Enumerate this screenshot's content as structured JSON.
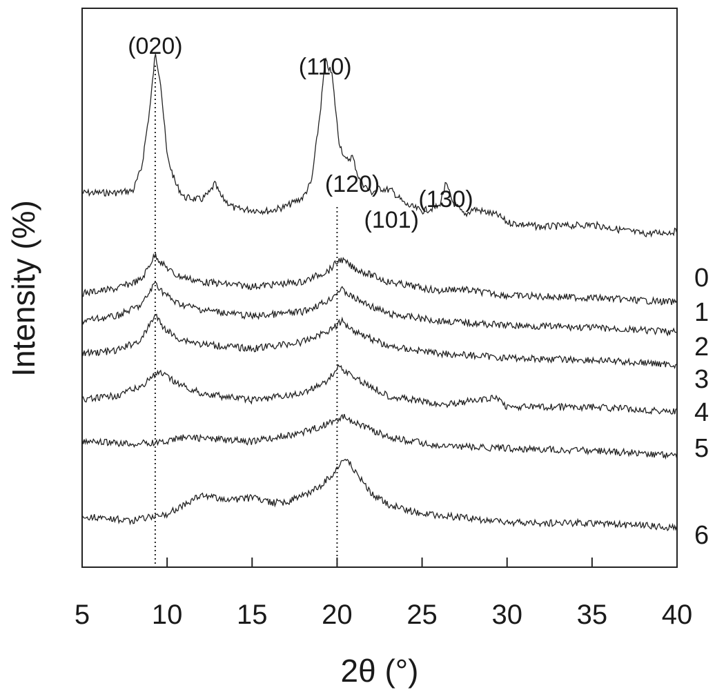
{
  "chart_data": {
    "type": "line",
    "xlabel": "2θ (°)",
    "ylabel": "Intensity (%)",
    "xlim": [
      5,
      40
    ],
    "xticks": [
      5,
      10,
      15,
      20,
      25,
      30,
      35,
      40
    ],
    "grid": false,
    "legend": "none",
    "ref_lines": [
      9.3,
      20.0
    ],
    "peak_labels": [
      {
        "text": "(020)",
        "x": 9.3
      },
      {
        "text": "(110)",
        "x": 19.3
      },
      {
        "text": "(120)",
        "x": 20.9
      },
      {
        "text": "(101)",
        "x": 23.2
      },
      {
        "text": "(130)",
        "x": 26.4
      }
    ],
    "series": [
      {
        "name": "0",
        "x": [
          5,
          7,
          8,
          8.5,
          9,
          9.3,
          9.6,
          10,
          10.5,
          11,
          12,
          12.5,
          12.8,
          13.2,
          14,
          16,
          17,
          18,
          18.5,
          19,
          19.3,
          19.7,
          20.1,
          20.5,
          20.9,
          21.3,
          22,
          22.5,
          23.2,
          24,
          25,
          26,
          26.4,
          26.8,
          27.5,
          28,
          29.5,
          30,
          32,
          35,
          38,
          40
        ],
        "y": [
          0.22,
          0.22,
          0.23,
          0.33,
          0.6,
          0.83,
          0.72,
          0.38,
          0.26,
          0.2,
          0.19,
          0.22,
          0.26,
          0.2,
          0.15,
          0.14,
          0.16,
          0.2,
          0.27,
          0.57,
          0.8,
          0.74,
          0.45,
          0.36,
          0.38,
          0.28,
          0.22,
          0.24,
          0.23,
          0.17,
          0.14,
          0.16,
          0.26,
          0.18,
          0.12,
          0.15,
          0.12,
          0.09,
          0.07,
          0.08,
          0.04,
          0.05
        ]
      },
      {
        "name": "1",
        "x": [
          5,
          7,
          8.5,
          9,
          9.3,
          9.7,
          10.5,
          12,
          15,
          18,
          19.5,
          20.2,
          21,
          23,
          26,
          27,
          30,
          35,
          40
        ],
        "y": [
          0,
          0.02,
          0.06,
          0.13,
          0.17,
          0.13,
          0.08,
          0.05,
          0.03,
          0.05,
          0.1,
          0.15,
          0.11,
          0.05,
          0.01,
          0.02,
          -0.01,
          -0.02,
          -0.04
        ]
      },
      {
        "name": "2",
        "x": [
          5,
          7,
          8.5,
          9,
          9.3,
          9.7,
          10.5,
          12,
          15,
          18,
          19.5,
          20.2,
          21,
          23,
          26,
          30,
          35,
          40
        ],
        "y": [
          0,
          0.02,
          0.07,
          0.13,
          0.17,
          0.13,
          0.08,
          0.05,
          0.02,
          0.04,
          0.09,
          0.14,
          0.1,
          0.03,
          0.0,
          -0.02,
          -0.03,
          -0.05
        ]
      },
      {
        "name": "3",
        "x": [
          5,
          7,
          8.5,
          9,
          9.3,
          9.7,
          10.5,
          12,
          15,
          18,
          19.5,
          20.3,
          21,
          23,
          26,
          30,
          35,
          40
        ],
        "y": [
          0,
          0.01,
          0.06,
          0.13,
          0.17,
          0.12,
          0.07,
          0.04,
          0.02,
          0.05,
          0.1,
          0.14,
          0.1,
          0.03,
          0.0,
          -0.02,
          -0.03,
          -0.05
        ]
      },
      {
        "name": "4",
        "x": [
          5,
          7,
          8.5,
          9,
          9.6,
          10,
          11,
          12,
          15,
          18,
          19.5,
          20.1,
          21,
          23,
          26,
          29.5,
          30,
          35,
          40
        ],
        "y": [
          0,
          0.02,
          0.06,
          0.1,
          0.12,
          0.1,
          0.06,
          0.03,
          0.0,
          0.03,
          0.09,
          0.15,
          0.1,
          0.02,
          -0.02,
          0.01,
          -0.03,
          -0.03,
          -0.05
        ]
      },
      {
        "name": "5",
        "x": [
          5,
          8,
          10,
          11,
          13,
          15,
          18,
          19.5,
          20.5,
          21.5,
          23,
          26,
          30,
          35,
          40
        ],
        "y": [
          0,
          -0.01,
          0.0,
          0.02,
          0.01,
          0.0,
          0.04,
          0.08,
          0.11,
          0.07,
          0.02,
          -0.02,
          -0.03,
          -0.04,
          -0.06
        ]
      },
      {
        "name": "6",
        "x": [
          5,
          8,
          10,
          11,
          12,
          14,
          15,
          16,
          17,
          18,
          19,
          19.8,
          20.5,
          21,
          22,
          23,
          25,
          28,
          30,
          35,
          40
        ],
        "y": [
          0,
          -0.02,
          0.01,
          0.05,
          0.09,
          0.07,
          0.08,
          0.06,
          0.06,
          0.09,
          0.13,
          0.19,
          0.26,
          0.2,
          0.1,
          0.05,
          0.01,
          -0.01,
          -0.03,
          -0.03,
          -0.05
        ]
      }
    ]
  }
}
